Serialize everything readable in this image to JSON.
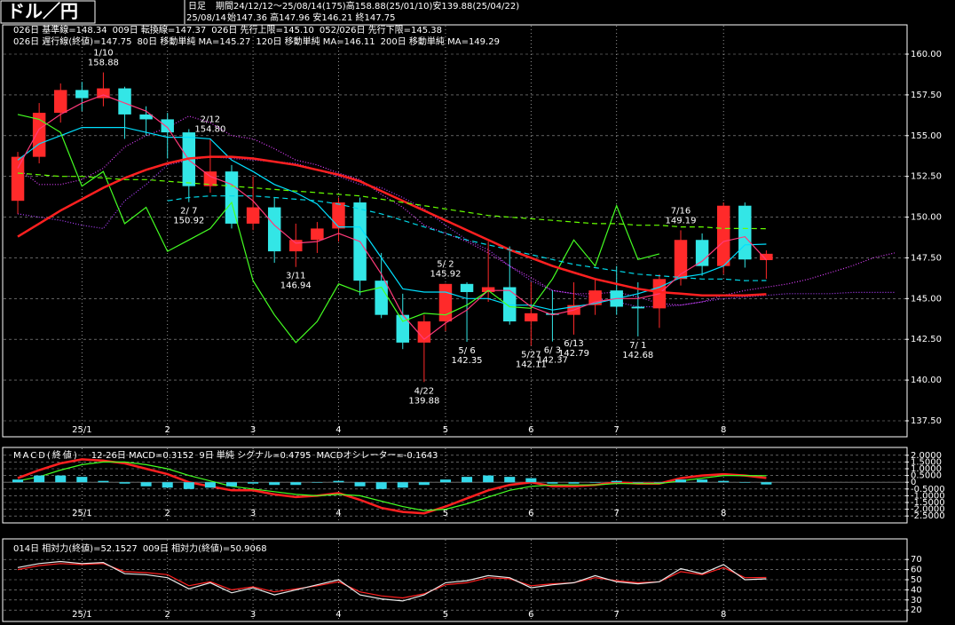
{
  "header": {
    "title": "ドル／円",
    "timeframe": "日足",
    "period": "期間24/12/12～25/08/14(175)高158.88(25/01/10)安139.88(25/04/22)",
    "date": "25/08/14",
    "ohlc": "始147.36 高147.96 安146.21 終147.75"
  },
  "chart_data": [
    {
      "type": "candlestick",
      "categories": [
        null,
        null,
        null,
        "25/1",
        null,
        null,
        null,
        "2",
        null,
        null,
        null,
        "3",
        null,
        null,
        null,
        "4",
        null,
        null,
        null,
        null,
        "5",
        null,
        null,
        null,
        "6",
        null,
        null,
        null,
        "7",
        null,
        null,
        null,
        null,
        "8",
        null,
        null,
        null,
        null,
        null,
        null,
        null,
        null
      ],
      "open": [
        151.0,
        153.7,
        156.4,
        157.8,
        157.3,
        157.9,
        156.3,
        156.0,
        155.2,
        151.9,
        152.8,
        149.6,
        150.6,
        147.9,
        148.6,
        149.3,
        150.9,
        146.1,
        144.0,
        142.3,
        143.6,
        145.9,
        145.4,
        145.7,
        143.6,
        144.1,
        144.0,
        144.6,
        145.5,
        144.5,
        144.4,
        146.2,
        148.6,
        147.0,
        150.7,
        147.36,
        null,
        null,
        null,
        null,
        null,
        null
      ],
      "high": [
        154.0,
        157.0,
        158.2,
        158.3,
        158.88,
        158.0,
        156.8,
        156.4,
        155.4,
        154.8,
        153.2,
        152.5,
        151.2,
        149.6,
        149.7,
        151.2,
        151.2,
        147.8,
        145.3,
        144.0,
        145.92,
        146.0,
        148.5,
        148.2,
        146.0,
        145.5,
        146.0,
        146.2,
        147.0,
        146.0,
        146.5,
        149.19,
        149.0,
        150.9,
        150.9,
        147.96,
        null,
        null,
        null,
        null,
        null,
        null
      ],
      "low": [
        150.2,
        153.3,
        155.8,
        156.5,
        156.8,
        154.8,
        155.0,
        153.6,
        150.92,
        151.5,
        149.3,
        149.2,
        147.2,
        146.94,
        147.8,
        148.5,
        145.2,
        143.8,
        141.9,
        139.88,
        143.0,
        142.35,
        144.8,
        143.4,
        142.11,
        142.37,
        142.79,
        144.0,
        144.0,
        142.68,
        143.2,
        145.8,
        146.4,
        146.5,
        146.9,
        146.21,
        null,
        null,
        null,
        null,
        null,
        null
      ],
      "close": [
        153.7,
        156.4,
        157.8,
        157.3,
        157.9,
        156.3,
        156.0,
        155.2,
        151.9,
        152.8,
        149.6,
        150.6,
        147.9,
        148.6,
        149.3,
        150.9,
        146.1,
        144.0,
        142.3,
        143.6,
        145.9,
        145.4,
        145.7,
        143.6,
        144.1,
        144.0,
        144.6,
        145.5,
        144.5,
        144.4,
        146.2,
        148.6,
        147.0,
        150.7,
        147.4,
        147.75,
        null,
        null,
        null,
        null,
        null,
        null
      ],
      "up_color": "#ff2a2a",
      "down_color": "#33e6e6",
      "series": [
        {
          "name": "026日 基準線=148.34",
          "color": "#00e0ff",
          "style": "line",
          "values": [
            153.5,
            154.5,
            155.0,
            155.5,
            155.5,
            155.5,
            155.2,
            154.9,
            154.9,
            154.8,
            153.5,
            152.8,
            152.0,
            151.5,
            150.8,
            149.4,
            149.4,
            147.5,
            145.6,
            145.4,
            145.4,
            145.0,
            145.0,
            144.6,
            144.6,
            144.3,
            144.5,
            144.7,
            145.0,
            145.3,
            145.7,
            146.3,
            146.5,
            147.0,
            148.3,
            148.34,
            null,
            null,
            null,
            null,
            null,
            null
          ]
        },
        {
          "name": "009日 転換線=147.37",
          "color": "#ff3a7a",
          "style": "line",
          "values": [
            153.0,
            155.4,
            156.3,
            157.0,
            157.5,
            157.0,
            156.5,
            155.5,
            153.5,
            152.5,
            152.0,
            151.0,
            149.5,
            148.4,
            148.5,
            149.0,
            148.5,
            146.5,
            144.0,
            142.5,
            143.5,
            144.3,
            145.5,
            145.5,
            144.5,
            144.0,
            144.3,
            144.8,
            145.0,
            145.0,
            145.3,
            146.5,
            147.3,
            148.5,
            148.8,
            147.37,
            null,
            null,
            null,
            null,
            null,
            null
          ]
        },
        {
          "name": "026日 先行上限=145.10",
          "color": "#e040ff",
          "style": "dot",
          "values": [
            153.0,
            152.0,
            152.0,
            152.3,
            153.0,
            154.3,
            155.0,
            155.5,
            156.2,
            155.8,
            155.0,
            154.8,
            154.2,
            153.5,
            153.2,
            152.7,
            152.3,
            151.4,
            150.6,
            149.5,
            149.0,
            148.5,
            147.8,
            147.0,
            146.3,
            145.5,
            145.3,
            145.3,
            145.4,
            145.1,
            144.7,
            144.6,
            144.8,
            145.2,
            145.5,
            145.7,
            145.9,
            146.2,
            146.6,
            147.0,
            147.5,
            147.8
          ]
        },
        {
          "name": "052/026日 先行下限=145.38",
          "color": "#b040ff",
          "style": "dot",
          "values": [
            150.2,
            150.0,
            149.8,
            149.5,
            149.3,
            151.0,
            152.0,
            153.2,
            153.5,
            153.7,
            153.6,
            153.5,
            153.4,
            153.3,
            152.9,
            152.5,
            152.0,
            151.8,
            151.2,
            150.5,
            149.5,
            148.6,
            148.0,
            147.0,
            146.1,
            145.5,
            145.3,
            145.0,
            144.8,
            144.5,
            144.5,
            144.6,
            144.8,
            145.0,
            145.1,
            145.2,
            145.3,
            145.3,
            145.3,
            145.38,
            145.38,
            145.38
          ]
        },
        {
          "name": "026日 遅行線(終値)=147.75",
          "color": "#44ff22",
          "style": "line",
          "values": [
            156.3,
            156.0,
            155.2,
            151.9,
            152.8,
            149.6,
            150.6,
            147.9,
            148.6,
            149.3,
            150.9,
            146.1,
            144.0,
            142.3,
            143.6,
            145.9,
            145.4,
            145.7,
            143.6,
            144.1,
            144.0,
            144.6,
            145.5,
            144.5,
            144.4,
            146.2,
            148.6,
            147.0,
            150.7,
            147.4,
            147.75,
            null,
            null,
            null,
            null,
            null,
            null,
            null,
            null,
            null,
            null,
            null
          ]
        },
        {
          "name": "80日 移動単純 MA=145.27",
          "color": "#ff2020",
          "style": "thick",
          "values": [
            148.8,
            149.6,
            150.4,
            151.1,
            151.8,
            152.4,
            152.9,
            153.3,
            153.6,
            153.7,
            153.7,
            153.6,
            153.4,
            153.2,
            152.9,
            152.6,
            152.2,
            151.6,
            151.0,
            150.4,
            149.8,
            149.2,
            148.6,
            148.0,
            147.5,
            147.0,
            146.6,
            146.2,
            145.9,
            145.6,
            145.4,
            145.3,
            145.2,
            145.2,
            145.2,
            145.27,
            null,
            null,
            null,
            null,
            null,
            null
          ]
        },
        {
          "name": "120日 移動単純 MA=146.11",
          "color": "#00d8e8",
          "style": "dash",
          "values": [
            null,
            null,
            null,
            null,
            null,
            null,
            null,
            151.0,
            151.2,
            151.3,
            151.3,
            151.3,
            151.2,
            151.1,
            151.0,
            150.8,
            150.5,
            150.2,
            149.8,
            149.4,
            149.0,
            148.6,
            148.3,
            148.0,
            147.7,
            147.4,
            147.1,
            146.9,
            146.7,
            146.5,
            146.4,
            146.3,
            146.2,
            146.2,
            146.1,
            146.11,
            null,
            null,
            null,
            null,
            null,
            null
          ]
        },
        {
          "name": "200日 移動単純 MA=149.29",
          "color": "#66ff00",
          "style": "dash",
          "values": [
            152.7,
            152.6,
            152.5,
            152.5,
            152.4,
            152.3,
            152.3,
            152.2,
            152.1,
            152.0,
            151.9,
            151.8,
            151.7,
            151.6,
            151.5,
            151.4,
            151.3,
            151.1,
            150.9,
            150.7,
            150.5,
            150.3,
            150.1,
            150.0,
            149.9,
            149.8,
            149.7,
            149.6,
            149.6,
            149.5,
            149.5,
            149.4,
            149.4,
            149.3,
            149.3,
            149.29,
            null,
            null,
            null,
            null,
            null,
            null
          ]
        }
      ],
      "annotations": [
        {
          "date": "1/10",
          "value": 158.88
        },
        {
          "date": "2/ 7",
          "value": 150.92
        },
        {
          "date": "2/12",
          "value": 154.8,
          "value_label": "154.80"
        },
        {
          "date": "3/11",
          "value": 146.94
        },
        {
          "date": "4/22",
          "value": 139.88
        },
        {
          "date": "5/ 2",
          "value": 145.92
        },
        {
          "date": "5/ 6",
          "value": 142.35
        },
        {
          "date": "5/27",
          "value": 142.11
        },
        {
          "date": "6/ 3",
          "value": 142.37
        },
        {
          "date": "6/13",
          "value": 142.79
        },
        {
          "date": "7/ 1",
          "value": 142.68
        },
        {
          "date": "7/16",
          "value": 149.19
        }
      ],
      "high_label_color": "#ff3030",
      "low_label_color": "#66e8ff",
      "ylim": [
        137.5,
        160
      ],
      "yticks": [
        {
          "value": 137.5,
          "label": "137.50"
        },
        {
          "value": 140,
          "label": "140.00"
        },
        {
          "value": 142.5,
          "label": "142.50"
        },
        {
          "value": 145,
          "label": "145.00"
        },
        {
          "value": 147.5,
          "label": "147.50"
        },
        {
          "value": 150,
          "label": "150.00"
        },
        {
          "value": 152.5,
          "label": "152.50"
        },
        {
          "value": 155,
          "label": "155.00"
        },
        {
          "value": 157.5,
          "label": "157.50"
        },
        {
          "value": 160,
          "label": "160.00"
        }
      ],
      "grid": true
    },
    {
      "type": "macd",
      "title": "MACD(終値)",
      "categories": [
        null,
        null,
        null,
        "25/1",
        null,
        null,
        null,
        "2",
        null,
        null,
        null,
        "3",
        null,
        null,
        null,
        "4",
        null,
        null,
        null,
        null,
        "5",
        null,
        null,
        null,
        "6",
        null,
        null,
        null,
        "7",
        null,
        null,
        null,
        null,
        "8",
        null,
        null,
        null,
        null,
        null,
        null,
        null,
        null
      ],
      "series": [
        {
          "name": "12-26日 MACD=0.3152",
          "color": "#ff2020",
          "style": "thick",
          "values": [
            0.3,
            0.9,
            1.4,
            1.7,
            1.6,
            1.4,
            1.0,
            0.6,
            0.0,
            -0.3,
            -0.6,
            -0.6,
            -0.9,
            -1.1,
            -1.0,
            -0.8,
            -1.3,
            -1.9,
            -2.2,
            -2.3,
            -1.8,
            -1.2,
            -0.6,
            -0.2,
            0.0,
            -0.3,
            -0.3,
            -0.2,
            0.0,
            -0.1,
            -0.1,
            0.3,
            0.5,
            0.6,
            0.5,
            0.3152,
            null,
            null,
            null,
            null,
            null,
            null
          ]
        },
        {
          "name": "9日 単純 シグナル=0.4795",
          "color": "#44ff22",
          "style": "line",
          "values": [
            0.1,
            0.4,
            0.9,
            1.3,
            1.5,
            1.5,
            1.3,
            1.0,
            0.5,
            0.1,
            -0.3,
            -0.5,
            -0.7,
            -0.9,
            -1.0,
            -0.9,
            -1.0,
            -1.4,
            -1.8,
            -2.1,
            -2.0,
            -1.6,
            -1.1,
            -0.6,
            -0.3,
            -0.2,
            -0.2,
            -0.2,
            -0.1,
            -0.1,
            -0.1,
            0.1,
            0.3,
            0.5,
            0.5,
            0.4795,
            null,
            null,
            null,
            null,
            null,
            null
          ]
        },
        {
          "name": "MACDオシレーター=-0.1643",
          "color": "#33d8e8",
          "style": "bar",
          "values": [
            0.2,
            0.5,
            0.5,
            0.4,
            0.1,
            -0.1,
            -0.3,
            -0.4,
            -0.5,
            -0.4,
            -0.3,
            -0.1,
            -0.2,
            -0.2,
            0.0,
            0.1,
            -0.3,
            -0.5,
            -0.4,
            -0.2,
            0.2,
            0.4,
            0.5,
            0.4,
            0.3,
            -0.1,
            -0.1,
            0.0,
            0.1,
            0.0,
            0.0,
            0.2,
            0.2,
            0.1,
            0.0,
            -0.1643,
            null,
            null,
            null,
            null,
            null,
            null
          ]
        }
      ],
      "ylim": [
        -2.75,
        2.25
      ],
      "yticks": [
        {
          "value": 2,
          "label": "2.0000"
        },
        {
          "value": 1.5,
          "label": "1.5000"
        },
        {
          "value": 1,
          "label": "1.0000"
        },
        {
          "value": 0.5,
          "label": "0.5000"
        },
        0,
        {
          "value": -0.5,
          "label": "-0.5000"
        },
        {
          "value": -1,
          "label": "-1.0000"
        },
        {
          "value": -1.5,
          "label": "-1.5000"
        },
        {
          "value": -2,
          "label": "-2.0000"
        },
        {
          "value": -2.5,
          "label": "-2.5000"
        }
      ],
      "grid": true
    },
    {
      "type": "line",
      "categories": [
        null,
        null,
        null,
        "25/1",
        null,
        null,
        null,
        "2",
        null,
        null,
        null,
        "3",
        null,
        null,
        null,
        "4",
        null,
        null,
        null,
        null,
        "5",
        null,
        null,
        null,
        "6",
        null,
        null,
        null,
        "7",
        null,
        null,
        null,
        null,
        "8",
        null,
        null,
        null,
        null,
        null,
        null,
        null,
        null
      ],
      "series": [
        {
          "name": "014日 相対力(終値)=52.1527",
          "color": "#ff2020",
          "style": "line",
          "values": [
            60,
            64,
            66,
            65,
            66,
            58,
            57,
            55,
            44,
            48,
            40,
            43,
            38,
            41,
            44,
            48,
            38,
            34,
            32,
            36,
            45,
            47,
            52,
            51,
            44,
            46,
            47,
            52,
            49,
            47,
            48,
            58,
            55,
            62,
            52,
            52.1527,
            null,
            null,
            null,
            null,
            null,
            null
          ]
        },
        {
          "name": "009日 相対力(終値)=50.9068",
          "color": "#e8e8e8",
          "style": "line",
          "values": [
            62,
            66,
            68,
            66,
            67,
            56,
            55,
            52,
            41,
            47,
            37,
            42,
            35,
            40,
            45,
            50,
            35,
            31,
            29,
            35,
            47,
            49,
            54,
            52,
            42,
            45,
            47,
            54,
            48,
            46,
            48,
            61,
            56,
            65,
            50,
            50.9068,
            null,
            null,
            null,
            null,
            null,
            null
          ]
        }
      ],
      "ylim": [
        14,
        86
      ],
      "yticks": [
        20,
        30,
        40,
        50,
        60,
        70
      ],
      "grid": true
    }
  ]
}
